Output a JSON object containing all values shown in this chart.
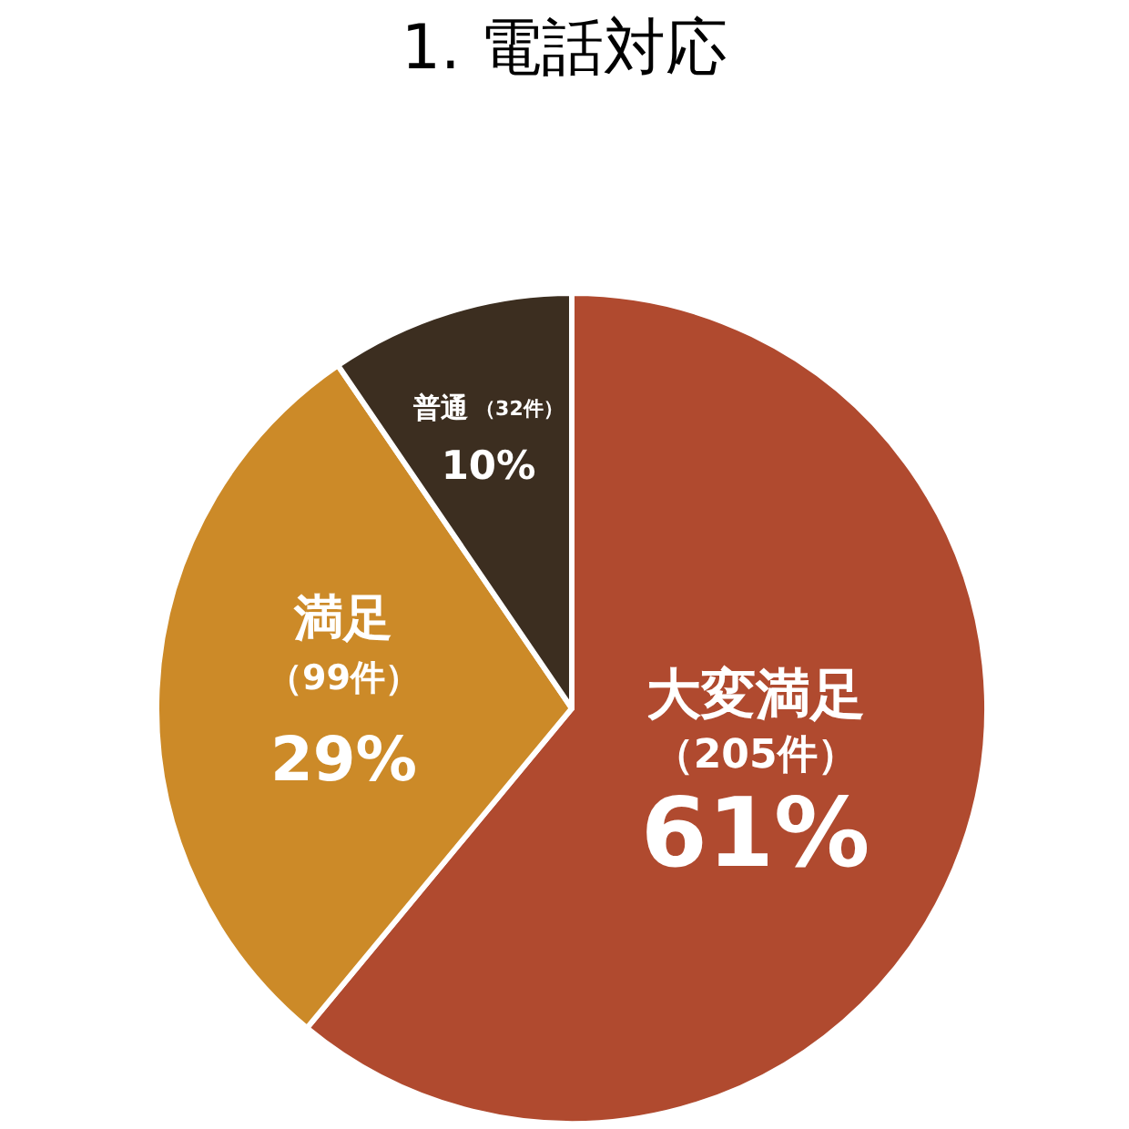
{
  "chart_data": {
    "type": "pie",
    "title": "1. 電話対応",
    "categories": [
      "大変満足",
      "満足",
      "普通"
    ],
    "values": [
      205,
      99,
      32
    ],
    "colors": [
      "#b04a2f",
      "#cc8a28",
      "#3c2e20"
    ],
    "value_labels": [
      "（205件）",
      "（99件）",
      "（32件）"
    ],
    "annotations": [
      {
        "text": "61%",
        "x": "大変満足"
      },
      {
        "text": "29%",
        "x": "満足"
      },
      {
        "text": "10%",
        "x": "普通"
      }
    ]
  }
}
